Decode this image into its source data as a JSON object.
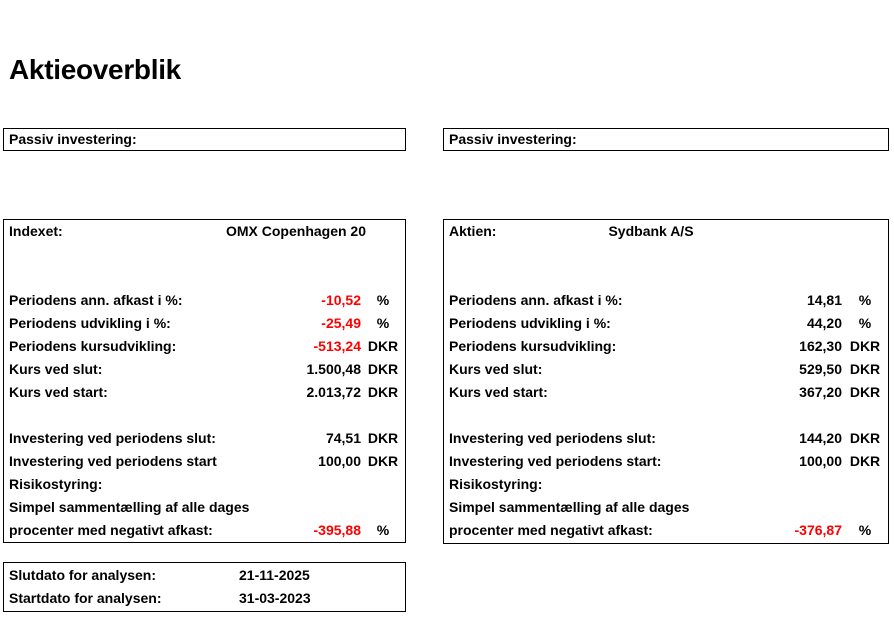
{
  "page": {
    "title": "Aktieoverblik"
  },
  "colors": {
    "text": "#000000",
    "negative": "#ff0000",
    "border": "#000000",
    "background": "#ffffff"
  },
  "left_section": {
    "header_label": "Passiv investering:",
    "panel": {
      "name_label": "Indexet:",
      "name_value": "OMX Copenhagen 20",
      "rows": [
        {
          "label": "Periodens ann. afkast i %:",
          "value": "-10,52",
          "unit": "%"
        },
        {
          "label": "Periodens udvikling i %:",
          "value": "-25,49",
          "unit": "%"
        },
        {
          "label": "Periodens kursudvikling:",
          "value": "-513,24",
          "unit": "DKR"
        },
        {
          "label": "Kurs ved slut:",
          "value": "1.500,48",
          "unit": "DKR"
        },
        {
          "label": "Kurs ved start:",
          "value": "2.013,72",
          "unit": "DKR"
        }
      ],
      "invest_rows": [
        {
          "label": "Investering ved periodens slut:",
          "value": "74,51",
          "unit": "DKR"
        },
        {
          "label": "Investering ved periodens start",
          "value": "100,00",
          "unit": "DKR"
        }
      ],
      "risk_label": "Risikostyring:",
      "risk_line1": "Simpel sammentælling af alle dages",
      "risk_line2": "procenter med negativt afkast:",
      "risk_value": "-395,88",
      "risk_unit": "%"
    }
  },
  "right_section": {
    "header_label": "Passiv investering:",
    "panel": {
      "name_label": "Aktien:",
      "name_value": "Sydbank A/S",
      "rows": [
        {
          "label": "Periodens ann. afkast i %:",
          "value": "14,81",
          "unit": "%"
        },
        {
          "label": "Periodens udvikling i %:",
          "value": "44,20",
          "unit": "%"
        },
        {
          "label": "Periodens kursudvikling:",
          "value": "162,30",
          "unit": "DKR"
        },
        {
          "label": "Kurs ved slut:",
          "value": "529,50",
          "unit": "DKR"
        },
        {
          "label": "Kurs ved start:",
          "value": "367,20",
          "unit": "DKR"
        }
      ],
      "invest_rows": [
        {
          "label": "Investering ved periodens slut:",
          "value": "144,20",
          "unit": "DKR"
        },
        {
          "label": "Investering ved periodens start:",
          "value": "100,00",
          "unit": "DKR"
        }
      ],
      "risk_label": "Risikostyring:",
      "risk_line1": "Simpel sammentælling af alle dages",
      "risk_line2": "procenter med negativt afkast:",
      "risk_value": "-376,87",
      "risk_unit": "%"
    }
  },
  "dates": {
    "rows": [
      {
        "label": "Slutdato for analysen:",
        "value": "21-11-2025"
      },
      {
        "label": "Startdato for analysen:",
        "value": "31-03-2023"
      }
    ]
  }
}
